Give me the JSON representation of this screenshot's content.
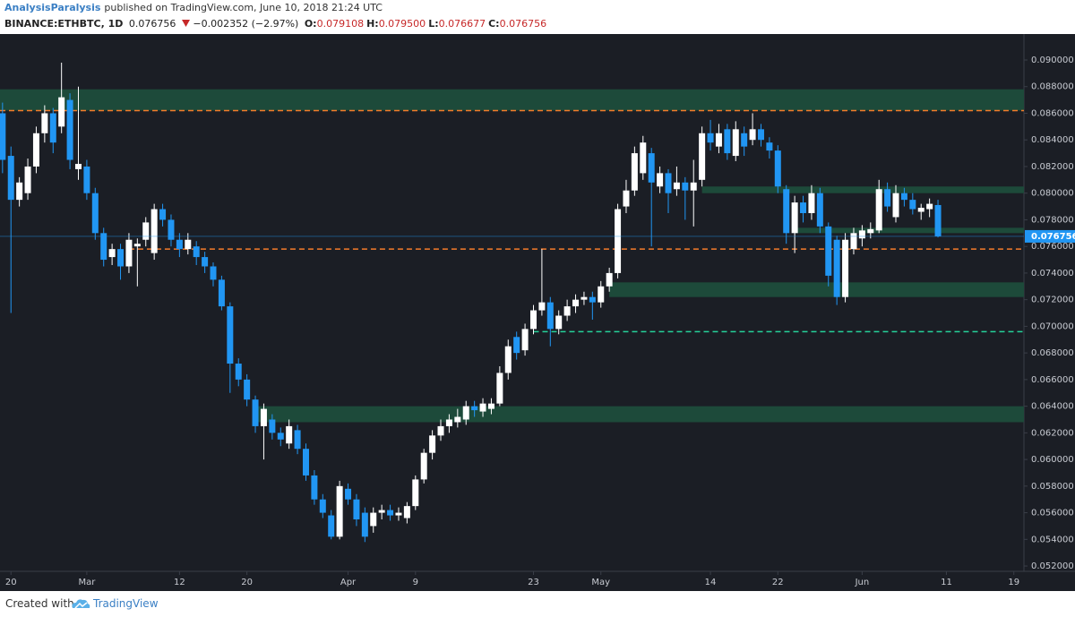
{
  "header": {
    "author": "AnalysisParalysis",
    "published": "published on TradingView.com, June 10, 2018 21:24 UTC",
    "symbol": "BINANCE:ETHBTC, 1D",
    "last": "0.076756",
    "change": "−0.002352 (−2.97%)",
    "ohlc": [
      {
        "label": "O:",
        "value": "0.079108"
      },
      {
        "label": "H:",
        "value": "0.079500"
      },
      {
        "label": "L:",
        "value": "0.076677"
      },
      {
        "label": "C:",
        "value": "0.076756"
      }
    ]
  },
  "footer": {
    "created": "Created with",
    "brand": "TradingView"
  },
  "chart_data": {
    "type": "candlestick",
    "up_color": "#ffffff",
    "down_color": "#2196f3",
    "grid": false,
    "x": [
      50,
      51,
      52,
      53,
      54,
      55,
      56,
      57,
      58,
      59,
      60,
      61,
      62,
      63,
      64,
      65,
      66,
      67,
      68,
      69,
      70,
      71,
      72,
      73,
      74,
      75,
      76,
      77,
      78,
      79,
      80,
      81,
      82,
      83,
      84,
      85,
      86,
      87,
      88,
      89,
      90,
      91,
      92,
      93,
      94,
      95,
      96,
      97,
      98,
      99,
      100,
      101,
      102,
      103,
      104,
      105,
      106,
      107,
      108,
      109,
      110,
      111,
      112,
      113,
      114,
      115,
      116,
      117,
      118,
      119,
      120,
      121,
      122,
      123,
      124,
      125,
      126,
      127,
      128,
      129,
      130,
      131,
      132,
      133,
      134,
      135,
      136,
      137,
      138,
      139,
      140,
      141,
      142,
      143,
      144,
      145,
      146,
      147,
      148,
      149,
      150,
      151,
      152,
      153,
      154,
      155,
      156,
      157,
      158,
      159,
      160,
      161
    ],
    "open": [
      0.086,
      0.0828,
      0.0795,
      0.08,
      0.082,
      0.0845,
      0.086,
      0.085,
      0.087,
      0.0818,
      0.082,
      0.08,
      0.077,
      0.0752,
      0.0758,
      0.0745,
      0.076,
      0.0765,
      0.0755,
      0.0788,
      0.078,
      0.0765,
      0.0758,
      0.076,
      0.0752,
      0.0745,
      0.0735,
      0.0715,
      0.0672,
      0.066,
      0.0645,
      0.0625,
      0.063,
      0.062,
      0.0612,
      0.0622,
      0.0608,
      0.0588,
      0.057,
      0.0558,
      0.0542,
      0.0578,
      0.057,
      0.056,
      0.055,
      0.056,
      0.0562,
      0.0558,
      0.0556,
      0.0565,
      0.0585,
      0.0605,
      0.0618,
      0.0625,
      0.0628,
      0.063,
      0.064,
      0.0636,
      0.0638,
      0.0642,
      0.0665,
      0.0692,
      0.0682,
      0.0698,
      0.0712,
      0.0718,
      0.0698,
      0.0708,
      0.0715,
      0.072,
      0.0722,
      0.0718,
      0.073,
      0.074,
      0.079,
      0.0802,
      0.0815,
      0.083,
      0.0805,
      0.0815,
      0.0803,
      0.0808,
      0.0802,
      0.081,
      0.0845,
      0.0835,
      0.0848,
      0.0828,
      0.0845,
      0.084,
      0.0848,
      0.0838,
      0.0832,
      0.0803,
      0.077,
      0.0793,
      0.0785,
      0.08,
      0.0775,
      0.0765,
      0.0722,
      0.0758,
      0.0766,
      0.077,
      0.0772,
      0.0803,
      0.0782,
      0.08,
      0.0795,
      0.0786,
      0.0788,
      0.079108
    ],
    "high": [
      0.0868,
      0.0835,
      0.0812,
      0.0826,
      0.085,
      0.0866,
      0.0864,
      0.0898,
      0.0875,
      0.088,
      0.0825,
      0.0804,
      0.0774,
      0.0762,
      0.0762,
      0.077,
      0.0766,
      0.0782,
      0.0792,
      0.0792,
      0.0784,
      0.077,
      0.077,
      0.0764,
      0.0756,
      0.0748,
      0.0738,
      0.0718,
      0.0676,
      0.0664,
      0.0648,
      0.0642,
      0.0634,
      0.0624,
      0.063,
      0.0626,
      0.0612,
      0.0592,
      0.0574,
      0.0562,
      0.0584,
      0.0582,
      0.0574,
      0.0564,
      0.0564,
      0.0566,
      0.0566,
      0.0564,
      0.0568,
      0.0588,
      0.0608,
      0.0622,
      0.063,
      0.0634,
      0.0638,
      0.0644,
      0.0644,
      0.0646,
      0.0646,
      0.067,
      0.069,
      0.0696,
      0.0702,
      0.0716,
      0.0758,
      0.0722,
      0.0712,
      0.072,
      0.0724,
      0.0726,
      0.0726,
      0.0734,
      0.0744,
      0.0792,
      0.081,
      0.0835,
      0.0843,
      0.0834,
      0.082,
      0.0818,
      0.082,
      0.0812,
      0.0825,
      0.085,
      0.0855,
      0.0852,
      0.0852,
      0.0854,
      0.085,
      0.086,
      0.0852,
      0.0842,
      0.0836,
      0.0806,
      0.0798,
      0.0798,
      0.0806,
      0.0804,
      0.0778,
      0.0768,
      0.077,
      0.0774,
      0.0776,
      0.0778,
      0.081,
      0.0808,
      0.0806,
      0.0804,
      0.08,
      0.0792,
      0.0796,
      0.0795
    ],
    "low": [
      0.0815,
      0.071,
      0.079,
      0.0795,
      0.0815,
      0.0838,
      0.083,
      0.0845,
      0.0818,
      0.081,
      0.0795,
      0.0765,
      0.0745,
      0.0746,
      0.0735,
      0.074,
      0.073,
      0.076,
      0.075,
      0.0775,
      0.076,
      0.0752,
      0.0754,
      0.0746,
      0.074,
      0.073,
      0.0712,
      0.065,
      0.0655,
      0.064,
      0.062,
      0.06,
      0.0615,
      0.061,
      0.0608,
      0.0604,
      0.0584,
      0.0566,
      0.0556,
      0.054,
      0.054,
      0.0566,
      0.055,
      0.0538,
      0.0545,
      0.0555,
      0.0554,
      0.0554,
      0.0552,
      0.0562,
      0.0582,
      0.06,
      0.0614,
      0.062,
      0.0624,
      0.0626,
      0.0632,
      0.0632,
      0.0634,
      0.064,
      0.066,
      0.0675,
      0.0678,
      0.0694,
      0.0708,
      0.0685,
      0.0694,
      0.0704,
      0.071,
      0.0716,
      0.0705,
      0.0714,
      0.0726,
      0.0736,
      0.0785,
      0.0798,
      0.081,
      0.076,
      0.08,
      0.0785,
      0.0798,
      0.078,
      0.0775,
      0.0805,
      0.0832,
      0.083,
      0.0825,
      0.0824,
      0.0828,
      0.0836,
      0.0835,
      0.0826,
      0.08,
      0.0762,
      0.0755,
      0.0778,
      0.078,
      0.077,
      0.073,
      0.0716,
      0.0718,
      0.0754,
      0.076,
      0.0766,
      0.077,
      0.0786,
      0.0778,
      0.079,
      0.0784,
      0.078,
      0.0782,
      0.076677
    ],
    "close": [
      0.0825,
      0.0795,
      0.0808,
      0.082,
      0.0845,
      0.086,
      0.0838,
      0.0872,
      0.0825,
      0.0822,
      0.08,
      0.077,
      0.075,
      0.0758,
      0.0745,
      0.0765,
      0.0762,
      0.0778,
      0.0788,
      0.078,
      0.0765,
      0.0758,
      0.0765,
      0.0752,
      0.0745,
      0.0735,
      0.0715,
      0.0672,
      0.066,
      0.0645,
      0.0625,
      0.0638,
      0.062,
      0.0615,
      0.0625,
      0.0608,
      0.0588,
      0.057,
      0.056,
      0.0542,
      0.058,
      0.057,
      0.0555,
      0.0542,
      0.056,
      0.0562,
      0.0558,
      0.056,
      0.0565,
      0.0585,
      0.0605,
      0.0618,
      0.0625,
      0.063,
      0.0632,
      0.064,
      0.0637,
      0.0642,
      0.0642,
      0.0665,
      0.0685,
      0.068,
      0.0698,
      0.0712,
      0.0718,
      0.0698,
      0.0708,
      0.0715,
      0.072,
      0.0722,
      0.0718,
      0.073,
      0.074,
      0.0788,
      0.0802,
      0.083,
      0.0838,
      0.0808,
      0.0815,
      0.08,
      0.0808,
      0.0802,
      0.0808,
      0.0845,
      0.0838,
      0.0845,
      0.083,
      0.0848,
      0.0835,
      0.0848,
      0.084,
      0.0832,
      0.0805,
      0.077,
      0.0793,
      0.0785,
      0.08,
      0.0775,
      0.0738,
      0.0722,
      0.0765,
      0.077,
      0.0772,
      0.0773,
      0.0803,
      0.079,
      0.08,
      0.0795,
      0.0788,
      0.0789,
      0.0792,
      0.076756
    ],
    "xlim": [
      49.7,
      171.2
    ],
    "xticks": [
      {
        "value": 51,
        "label": "20"
      },
      {
        "value": 60,
        "label": "Mar"
      },
      {
        "value": 71,
        "label": "12"
      },
      {
        "value": 79,
        "label": "20"
      },
      {
        "value": 91,
        "label": "Apr"
      },
      {
        "value": 99,
        "label": "9"
      },
      {
        "value": 113,
        "label": "23"
      },
      {
        "value": 121,
        "label": "May"
      },
      {
        "value": 134,
        "label": "14"
      },
      {
        "value": 142,
        "label": "22"
      },
      {
        "value": 152,
        "label": "Jun"
      },
      {
        "value": 162,
        "label": "11"
      },
      {
        "value": 170,
        "label": "19"
      }
    ],
    "ylim": [
      0.0516,
      0.09195
    ],
    "yticks": [
      {
        "value": 0.052,
        "label": "0.052000"
      },
      {
        "value": 0.054,
        "label": "0.054000"
      },
      {
        "value": 0.056,
        "label": "0.056000"
      },
      {
        "value": 0.058,
        "label": "0.058000"
      },
      {
        "value": 0.06,
        "label": "0.060000"
      },
      {
        "value": 0.062,
        "label": "0.062000"
      },
      {
        "value": 0.064,
        "label": "0.064000"
      },
      {
        "value": 0.066,
        "label": "0.066000"
      },
      {
        "value": 0.068,
        "label": "0.068000"
      },
      {
        "value": 0.07,
        "label": "0.070000"
      },
      {
        "value": 0.072,
        "label": "0.072000"
      },
      {
        "value": 0.074,
        "label": "0.074000"
      },
      {
        "value": 0.076,
        "label": "0.076000"
      },
      {
        "value": 0.078,
        "label": "0.078000"
      },
      {
        "value": 0.08,
        "label": "0.080000"
      },
      {
        "value": 0.082,
        "label": "0.082000"
      },
      {
        "value": 0.084,
        "label": "0.084000"
      },
      {
        "value": 0.086,
        "label": "0.086000"
      },
      {
        "value": 0.088,
        "label": "0.088000"
      },
      {
        "value": 0.09,
        "label": "0.090000"
      }
    ],
    "zones": [
      {
        "low": 0.0862,
        "high": 0.0878
      },
      {
        "low": 0.08,
        "high": 0.0805,
        "from": 133
      },
      {
        "low": 0.077,
        "high": 0.0774,
        "from": 144
      },
      {
        "low": 0.0722,
        "high": 0.0733,
        "from": 122
      },
      {
        "low": 0.0628,
        "high": 0.064,
        "from": 80
      }
    ],
    "zone_color": "#1d4a3a",
    "levels": [
      {
        "value": 0.0862,
        "color": "#f57c2a"
      },
      {
        "value": 0.0758,
        "color": "#f57c2a",
        "from": 65
      },
      {
        "value": 0.0696,
        "color": "#26d39a",
        "from": 113
      }
    ]
  }
}
